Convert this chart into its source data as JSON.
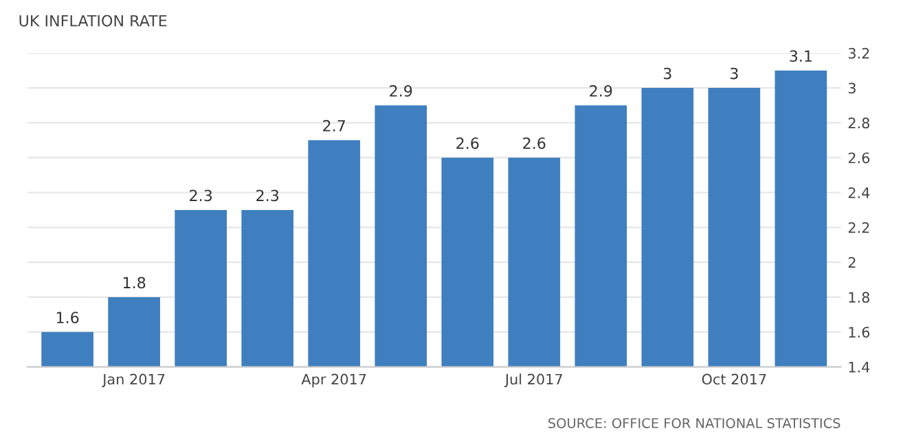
{
  "chart_data": {
    "type": "bar",
    "title": "UK INFLATION RATE",
    "categories": [
      null,
      "Jan 2017",
      null,
      null,
      "Apr 2017",
      null,
      null,
      "Jul 2017",
      null,
      null,
      "Oct 2017",
      null
    ],
    "values": [
      1.6,
      1.8,
      2.3,
      2.3,
      2.7,
      2.9,
      2.6,
      2.6,
      2.9,
      3,
      3,
      3.1
    ],
    "color": "#3f7fbf",
    "ylim": [
      1.4,
      3.2
    ],
    "yticks": [
      1.4,
      1.6,
      1.8,
      2,
      2.2,
      2.4,
      2.6,
      2.8,
      3,
      3.2
    ],
    "grid": "y",
    "data_labels": true,
    "annotations": [
      "SOURCE: OFFICE FOR NATIONAL STATISTICS"
    ]
  }
}
